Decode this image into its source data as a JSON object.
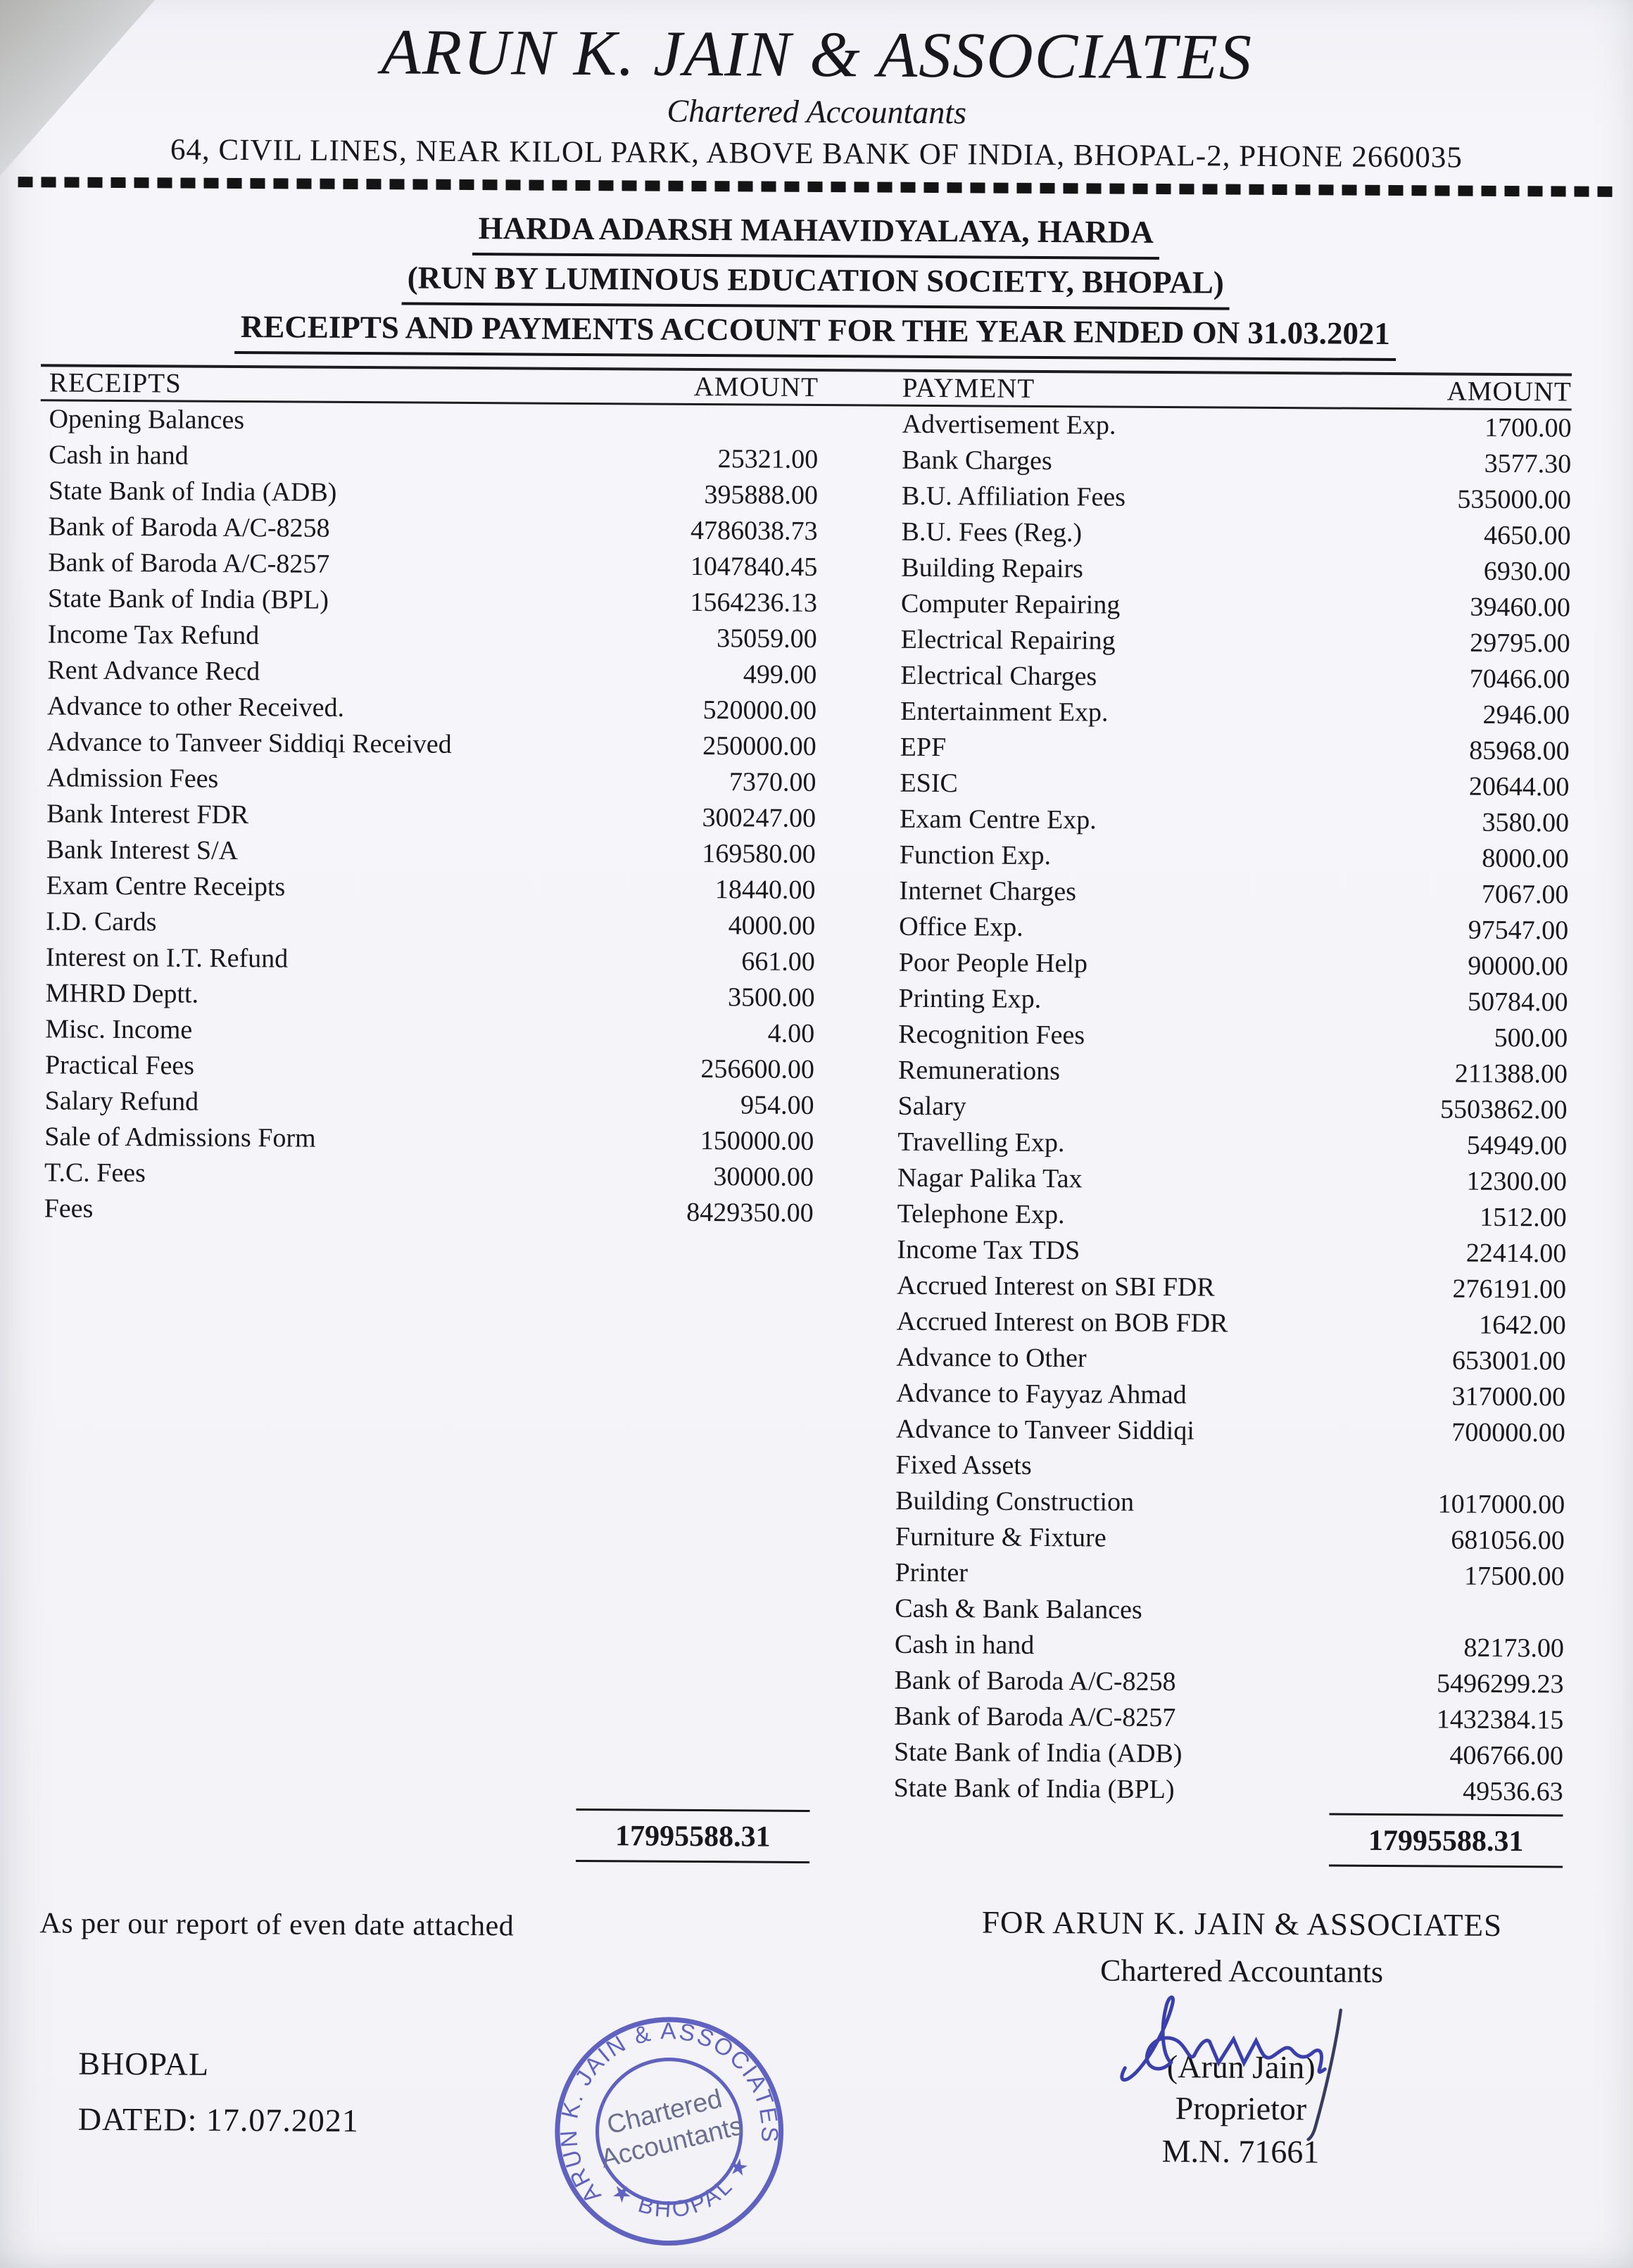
{
  "letterhead": {
    "firm_name": "ARUN K. JAIN & ASSOCIATES",
    "subtitle": "Chartered Accountants",
    "address": "64, CIVIL LINES, NEAR KILOL PARK, ABOVE BANK OF INDIA, BHOPAL-2, PHONE 2660035"
  },
  "title": {
    "line1": "HARDA ADARSH MAHAVIDYALAYA, HARDA",
    "line2": "(RUN BY LUMINOUS EDUCATION SOCIETY, BHOPAL)",
    "line3": "RECEIPTS AND PAYMENTS ACCOUNT FOR THE YEAR ENDED ON 31.03.2021"
  },
  "table": {
    "headers": {
      "receipts": "RECEIPTS",
      "amount_left": "AMOUNT",
      "payment": "PAYMENT",
      "amount_right": "AMOUNT"
    },
    "receipts_rows": [
      {
        "label": "Opening Balances",
        "amount": "",
        "section": true
      },
      {
        "label": "Cash in hand",
        "amount": "25321.00",
        "section": false
      },
      {
        "label": "State Bank of India (ADB)",
        "amount": "395888.00",
        "section": false
      },
      {
        "label": "Bank of Baroda A/C-8258",
        "amount": "4786038.73",
        "section": false
      },
      {
        "label": "Bank of Baroda A/C-8257",
        "amount": "1047840.45",
        "section": false
      },
      {
        "label": "State Bank of India (BPL)",
        "amount": "1564236.13",
        "section": false
      },
      {
        "label": "Income Tax Refund",
        "amount": "35059.00",
        "section": false
      },
      {
        "label": "Rent Advance Recd",
        "amount": "499.00",
        "section": false
      },
      {
        "label": "Advance to other Received.",
        "amount": "520000.00",
        "section": false
      },
      {
        "label": "Advance to Tanveer Siddiqi Received",
        "amount": "250000.00",
        "section": false
      },
      {
        "label": "Admission Fees",
        "amount": "7370.00",
        "section": false
      },
      {
        "label": "Bank Interest FDR",
        "amount": "300247.00",
        "section": false
      },
      {
        "label": "Bank Interest S/A",
        "amount": "169580.00",
        "section": false
      },
      {
        "label": "Exam Centre Receipts",
        "amount": "18440.00",
        "section": false
      },
      {
        "label": "I.D. Cards",
        "amount": "4000.00",
        "section": false
      },
      {
        "label": "Interest on I.T. Refund",
        "amount": "661.00",
        "section": false
      },
      {
        "label": "MHRD Deptt.",
        "amount": "3500.00",
        "section": false
      },
      {
        "label": "Misc. Income",
        "amount": "4.00",
        "section": false
      },
      {
        "label": "Practical Fees",
        "amount": "256600.00",
        "section": false
      },
      {
        "label": "Salary Refund",
        "amount": "954.00",
        "section": false
      },
      {
        "label": "Sale of Admissions Form",
        "amount": "150000.00",
        "section": false
      },
      {
        "label": "T.C. Fees",
        "amount": "30000.00",
        "section": false
      },
      {
        "label": "Fees",
        "amount": "8429350.00",
        "section": false
      }
    ],
    "payments_rows": [
      {
        "label": "Advertisement Exp.",
        "amount": "1700.00",
        "section": false
      },
      {
        "label": "Bank Charges",
        "amount": "3577.30",
        "section": false
      },
      {
        "label": "B.U. Affiliation Fees",
        "amount": "535000.00",
        "section": false
      },
      {
        "label": "B.U.  Fees (Reg.)",
        "amount": "4650.00",
        "section": false
      },
      {
        "label": "Building Repairs",
        "amount": "6930.00",
        "section": false
      },
      {
        "label": "Computer Repairing",
        "amount": "39460.00",
        "section": false
      },
      {
        "label": "Electrical Repairing",
        "amount": "29795.00",
        "section": false
      },
      {
        "label": "Electrical Charges",
        "amount": "70466.00",
        "section": false
      },
      {
        "label": "Entertainment Exp.",
        "amount": "2946.00",
        "section": false
      },
      {
        "label": "EPF",
        "amount": "85968.00",
        "section": false
      },
      {
        "label": "ESIC",
        "amount": "20644.00",
        "section": false
      },
      {
        "label": "Exam Centre Exp.",
        "amount": "3580.00",
        "section": false
      },
      {
        "label": "Function Exp.",
        "amount": "8000.00",
        "section": false
      },
      {
        "label": "Internet Charges",
        "amount": "7067.00",
        "section": false
      },
      {
        "label": "Office Exp.",
        "amount": "97547.00",
        "section": false
      },
      {
        "label": "Poor People Help",
        "amount": "90000.00",
        "section": false
      },
      {
        "label": "Printing Exp.",
        "amount": "50784.00",
        "section": false
      },
      {
        "label": "Recognition Fees",
        "amount": "500.00",
        "section": false
      },
      {
        "label": "Remunerations",
        "amount": "211388.00",
        "section": false
      },
      {
        "label": "Salary",
        "amount": "5503862.00",
        "section": false
      },
      {
        "label": "Travelling Exp.",
        "amount": "54949.00",
        "section": false
      },
      {
        "label": "Nagar Palika Tax",
        "amount": "12300.00",
        "section": false
      },
      {
        "label": "Telephone Exp.",
        "amount": "1512.00",
        "section": false
      },
      {
        "label": "Income Tax TDS",
        "amount": "22414.00",
        "section": false
      },
      {
        "label": "Accrued Interest on SBI FDR",
        "amount": "276191.00",
        "section": false
      },
      {
        "label": "Accrued Interest on BOB FDR",
        "amount": "1642.00",
        "section": false
      },
      {
        "label": "Advance to Other",
        "amount": "653001.00",
        "section": false
      },
      {
        "label": "Advance to Fayyaz Ahmad",
        "amount": "317000.00",
        "section": false
      },
      {
        "label": "Advance to Tanveer Siddiqi",
        "amount": "700000.00",
        "section": false
      },
      {
        "label": "Fixed Assets",
        "amount": "",
        "section": true
      },
      {
        "label": "Building Construction",
        "amount": "1017000.00",
        "section": false
      },
      {
        "label": "Furniture & Fixture",
        "amount": "681056.00",
        "section": false
      },
      {
        "label": "Printer",
        "amount": "17500.00",
        "section": false
      },
      {
        "label": "Cash & Bank Balances",
        "amount": "",
        "section": true
      },
      {
        "label": "Cash in hand",
        "amount": "82173.00",
        "section": false
      },
      {
        "label": "Bank of Baroda A/C-8258",
        "amount": "5496299.23",
        "section": false
      },
      {
        "label": "Bank of Baroda A/C-8257",
        "amount": "1432384.15",
        "section": false
      },
      {
        "label": "State Bank of India (ADB)",
        "amount": "406766.00",
        "section": false
      },
      {
        "label": "State Bank of India (BPL)",
        "amount": "49536.63",
        "section": false
      }
    ],
    "receipts_total": "17995588.31",
    "payments_total": "17995588.31"
  },
  "footer": {
    "report_note": "As per our report of even date attached",
    "for_line": "FOR ARUN K. JAIN & ASSOCIATES",
    "ca_line": "Chartered Accountants",
    "signatory_name": "(Arun Jain)",
    "signatory_title": "Proprietor",
    "membership_no": "M.N. 71661",
    "place": "BHOPAL",
    "dated": "DATED:  17.07.2021"
  },
  "stamp": {
    "arc_text": "ARUN K. JAIN & ASSOCIATES",
    "bottom_text": "★ BHOPAL ★",
    "center_line1": "Chartered",
    "center_line2": "Accountants",
    "ink_color": "#5356bd"
  },
  "signature": {
    "ink_color": "#3a3fae",
    "flourish_color": "#383c5e"
  },
  "paper_color": "#f5f5f9"
}
